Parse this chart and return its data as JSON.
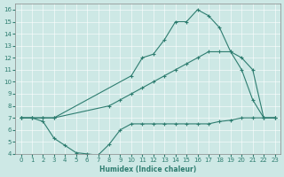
{
  "xlabel": "Humidex (Indice chaleur)",
  "xlim": [
    -0.5,
    23.5
  ],
  "ylim": [
    4,
    16.5
  ],
  "yticks": [
    4,
    5,
    6,
    7,
    8,
    9,
    10,
    11,
    12,
    13,
    14,
    15,
    16
  ],
  "xticks": [
    0,
    1,
    2,
    3,
    4,
    5,
    6,
    7,
    8,
    9,
    10,
    11,
    12,
    13,
    14,
    15,
    16,
    17,
    18,
    19,
    20,
    21,
    22,
    23
  ],
  "bg_color": "#cde8e5",
  "line_color": "#2e7d70",
  "line1_x": [
    0,
    1,
    2,
    3,
    10,
    11,
    12,
    13,
    14,
    15,
    16,
    17,
    18,
    19,
    20,
    21,
    22,
    23
  ],
  "line1_y": [
    7,
    7,
    7,
    7,
    10.5,
    12,
    12.3,
    13.5,
    15,
    15,
    16,
    15.5,
    14.5,
    12.5,
    11,
    8.5,
    7,
    7
  ],
  "line2_x": [
    0,
    1,
    2,
    3,
    8,
    9,
    10,
    11,
    12,
    13,
    14,
    15,
    16,
    17,
    18,
    19,
    20,
    21,
    22,
    23
  ],
  "line2_y": [
    7,
    7,
    7,
    7,
    8,
    8.5,
    9,
    9.5,
    10,
    10.5,
    11,
    11.5,
    12,
    12.5,
    12.5,
    12.5,
    12,
    11,
    7,
    7
  ],
  "line3_x": [
    0,
    1,
    2,
    3,
    4,
    5,
    6,
    7,
    8,
    9,
    10,
    11,
    12,
    13,
    14,
    15,
    16,
    17,
    18,
    19,
    20,
    21,
    22,
    23
  ],
  "line3_y": [
    7,
    7,
    6.7,
    5.3,
    4.7,
    4.1,
    4.0,
    3.9,
    4.8,
    6.0,
    6.5,
    6.5,
    6.5,
    6.5,
    6.5,
    6.5,
    6.5,
    6.5,
    6.7,
    6.8,
    7.0,
    7.0,
    7.0,
    7.0
  ]
}
